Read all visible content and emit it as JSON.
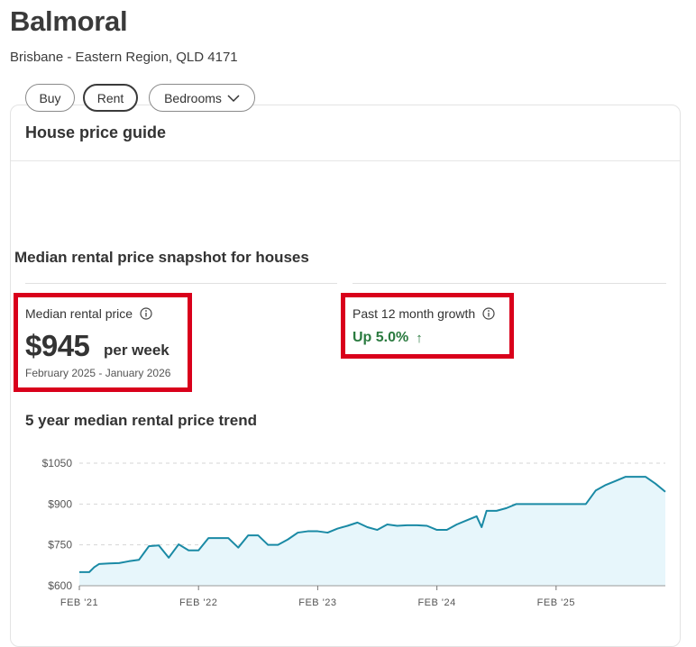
{
  "header": {
    "suburb": "Balmoral",
    "location": "Brisbane - Eastern Region, QLD 4171"
  },
  "card": {
    "title": "House price guide",
    "filters": {
      "buy": "Buy",
      "rent": "Rent",
      "bedrooms": "Bedrooms",
      "active": "Rent"
    },
    "snapshot_title": "Median rental price snapshot for houses",
    "median": {
      "label": "Median rental price",
      "value": "$945",
      "unit": "per week",
      "period": "February 2025 - January 2026"
    },
    "growth": {
      "label": "Past 12 month growth",
      "value": "Up 5.0%",
      "arrow": "↑"
    },
    "trend_title": "5 year median rental price trend"
  },
  "colors": {
    "highlight": "#d9001b",
    "line": "#1a8aa5",
    "area": "#e7f6fb",
    "growth": "#2a7a3f"
  },
  "icons": {
    "info": "info-icon",
    "chevron": "chevron-down-icon",
    "up_arrow": "arrow-up-icon"
  },
  "chart_data": {
    "type": "area",
    "title": "5 year median rental price trend",
    "y_ticks": [
      600,
      750,
      900,
      1050
    ],
    "y_tick_labels": [
      "$600",
      "$750",
      "$900",
      "$1050"
    ],
    "ylim": [
      600,
      1060
    ],
    "x_tick_labels": [
      "FEB '21",
      "FEB '22",
      "FEB '23",
      "FEB '24",
      "FEB '25"
    ],
    "x_tick_months": [
      0,
      12,
      24,
      36,
      48
    ],
    "grid": true,
    "series": [
      {
        "month": [
          0,
          1,
          1.5,
          2,
          3,
          4,
          5,
          6,
          6.5,
          7,
          8,
          9,
          10,
          11,
          12,
          13,
          14,
          14.5,
          15,
          16,
          17,
          18,
          19,
          20,
          21,
          22,
          23,
          24,
          25,
          26,
          27,
          28,
          29,
          30,
          31,
          32,
          33,
          34,
          35,
          36,
          37,
          38,
          39,
          40,
          40.5,
          41,
          42,
          43,
          44,
          45,
          46,
          47,
          48,
          49,
          50,
          51,
          52,
          53,
          54,
          55,
          56,
          57,
          58,
          59
        ],
        "values": [
          650,
          650,
          668,
          680,
          682,
          683,
          690,
          695,
          720,
          745,
          748,
          703,
          752,
          730,
          730,
          775,
          775,
          775,
          775,
          740,
          785,
          785,
          750,
          750,
          770,
          795,
          800,
          800,
          795,
          810,
          820,
          832,
          815,
          805,
          825,
          820,
          822,
          822,
          820,
          805,
          805,
          825,
          840,
          855,
          815,
          875,
          875,
          885,
          900,
          900,
          900,
          900,
          900,
          900,
          900,
          900,
          950,
          970,
          985,
          1000,
          1000,
          1000,
          975,
          945
        ]
      }
    ]
  }
}
